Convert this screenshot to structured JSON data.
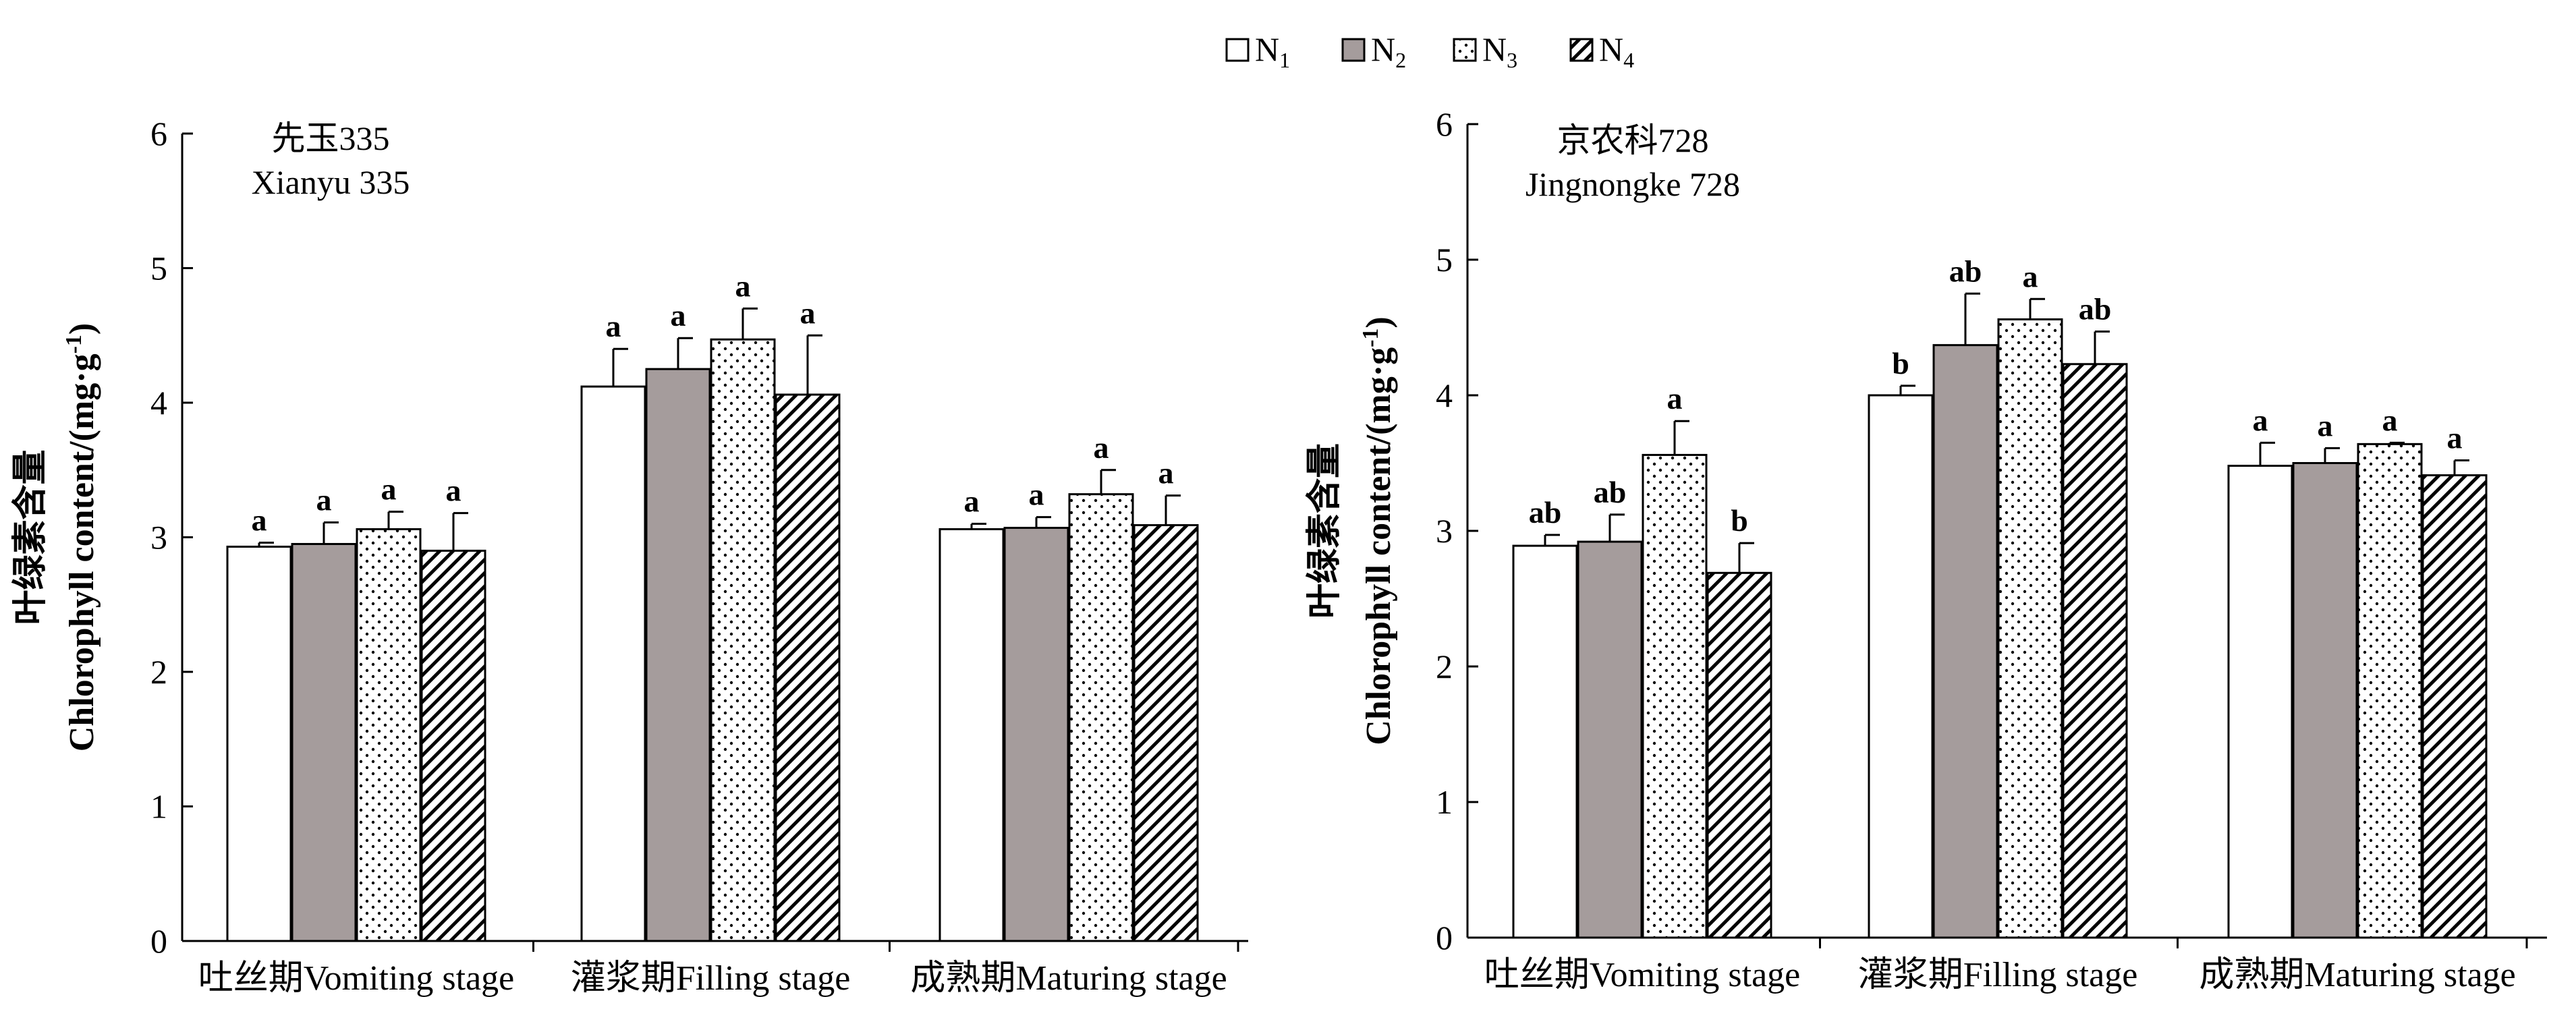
{
  "legend": {
    "items": [
      {
        "base": "N",
        "sub": "1",
        "pattern": "white"
      },
      {
        "base": "N",
        "sub": "2",
        "pattern": "grey"
      },
      {
        "base": "N",
        "sub": "3",
        "pattern": "dots"
      },
      {
        "base": "N",
        "sub": "4",
        "pattern": "hatch"
      }
    ]
  },
  "colors": {
    "n2_fill": "#a59c9c",
    "axis": "#000000",
    "bar_stroke": "#000000"
  },
  "chart_data": [
    {
      "type": "bar",
      "title_cn": "先玉335",
      "title_en": "Xianyu 335",
      "ylabel_cn": "叶绿素含量",
      "ylabel_en": "Chlorophyll content/(mg·g",
      "ylabel_sup": "-1",
      "ylabel_close": ")",
      "ylim": [
        0,
        6
      ],
      "yticks": [
        "0",
        "1",
        "2",
        "3",
        "4",
        "5",
        "6"
      ],
      "categories": [
        "吐丝期Vomiting stage",
        "灌浆期Filling stage",
        "成熟期Maturing stage"
      ],
      "series": [
        {
          "name": "N1",
          "values": [
            2.93,
            4.12,
            3.06
          ],
          "errors": [
            0.03,
            0.28,
            0.04
          ],
          "letters": [
            "a",
            "a",
            "a"
          ]
        },
        {
          "name": "N2",
          "values": [
            2.95,
            4.25,
            3.07
          ],
          "errors": [
            0.16,
            0.23,
            0.08
          ],
          "letters": [
            "a",
            "a",
            "a"
          ]
        },
        {
          "name": "N3",
          "values": [
            3.06,
            4.47,
            3.32
          ],
          "errors": [
            0.13,
            0.23,
            0.18
          ],
          "letters": [
            "a",
            "a",
            "a"
          ]
        },
        {
          "name": "N4",
          "values": [
            2.9,
            4.06,
            3.09
          ],
          "errors": [
            0.28,
            0.44,
            0.22
          ],
          "letters": [
            "a",
            "a",
            "a"
          ]
        }
      ]
    },
    {
      "type": "bar",
      "title_cn": "京农科728",
      "title_en": "Jingnongke 728",
      "ylabel_cn": "叶绿素含量",
      "ylabel_en": "Chlorophyll content/(mg·g",
      "ylabel_sup": "-1",
      "ylabel_close": ")",
      "ylim": [
        0,
        6
      ],
      "yticks": [
        "0",
        "1",
        "2",
        "3",
        "4",
        "5",
        "6"
      ],
      "categories": [
        "吐丝期Vomiting stage",
        "灌浆期Filling stage",
        "成熟期Maturing stage"
      ],
      "series": [
        {
          "name": "N1",
          "values": [
            2.89,
            4.0,
            3.48
          ],
          "errors": [
            0.08,
            0.07,
            0.17
          ],
          "letters": [
            "ab",
            "b",
            "a"
          ]
        },
        {
          "name": "N2",
          "values": [
            2.92,
            4.37,
            3.5
          ],
          "errors": [
            0.2,
            0.38,
            0.11
          ],
          "letters": [
            "ab",
            "ab",
            "a"
          ]
        },
        {
          "name": "N3",
          "values": [
            3.56,
            4.56,
            3.64
          ],
          "errors": [
            0.25,
            0.15,
            0.01
          ],
          "letters": [
            "a",
            "a",
            "a"
          ]
        },
        {
          "name": "N4",
          "values": [
            2.69,
            4.23,
            3.41
          ],
          "errors": [
            0.22,
            0.24,
            0.11
          ],
          "letters": [
            "b",
            "ab",
            "a"
          ]
        }
      ]
    }
  ]
}
